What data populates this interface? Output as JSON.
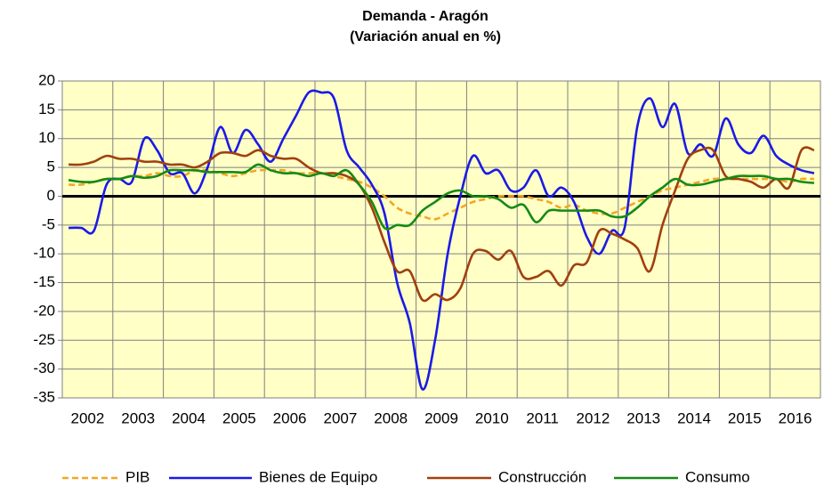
{
  "chart_data": {
    "type": "line",
    "title": "Demanda - Aragón",
    "subtitle": "(Variación anual en %)",
    "categories": [
      null,
      "2002",
      null,
      null,
      null,
      "2003",
      null,
      null,
      null,
      "2004",
      null,
      null,
      null,
      "2005",
      null,
      null,
      null,
      "2006",
      null,
      null,
      null,
      "2007",
      null,
      null,
      null,
      "2008",
      null,
      null,
      null,
      "2009",
      null,
      null,
      null,
      "2010",
      null,
      null,
      null,
      "2011",
      null,
      null,
      null,
      "2012",
      null,
      null,
      null,
      "2013",
      null,
      null,
      null,
      "2014",
      null,
      null,
      null,
      "2015",
      null,
      null,
      null,
      "2016",
      null,
      null
    ],
    "ylim": [
      -35,
      20
    ],
    "yticks": [
      -35,
      -30,
      -25,
      -20,
      -15,
      -10,
      -5,
      0,
      5,
      10,
      15,
      20
    ],
    "grid": true,
    "legend": "bottom",
    "series": [
      {
        "name": "PIB",
        "color": "#f5a623",
        "dashed": true,
        "values": [
          2,
          2,
          2.5,
          3,
          3,
          3.5,
          3.5,
          4,
          3.5,
          3.5,
          4.5,
          4.5,
          4,
          3.5,
          4,
          4.5,
          4.5,
          4.5,
          4,
          4,
          4,
          3.5,
          3,
          2.5,
          1.5,
          0,
          -2,
          -3,
          -3.5,
          -4,
          -3,
          -2,
          -1,
          -0.5,
          0,
          0,
          0,
          -0.5,
          -1,
          -2,
          -1.5,
          -2.5,
          -3,
          -3,
          -2,
          -1,
          0,
          1,
          1.5,
          2,
          2.5,
          3,
          3,
          3,
          3,
          3,
          3,
          2.5,
          3,
          3
        ]
      },
      {
        "name": "Bienes de Equipo",
        "color": "#1a1ae6",
        "values": [
          -5.5,
          -5.5,
          -6,
          2,
          3,
          2.5,
          10,
          8,
          4,
          4,
          0.5,
          5,
          12,
          7.5,
          11.5,
          9,
          6,
          10,
          14,
          18,
          18,
          17,
          8,
          5,
          2,
          -3,
          -15,
          -22,
          -33.5,
          -25,
          -10,
          0,
          7,
          4,
          4.5,
          1,
          1.5,
          4.5,
          0,
          1.5,
          -1,
          -7,
          -10,
          -6,
          -5.5,
          12,
          17,
          12,
          16,
          7.5,
          9,
          7,
          13.5,
          9,
          7.5,
          10.5,
          7,
          5.5,
          4.5,
          4
        ]
      },
      {
        "name": "Construcción",
        "color": "#a0400f",
        "values": [
          5.5,
          5.5,
          6,
          7,
          6.5,
          6.5,
          6,
          6,
          5.5,
          5.5,
          5,
          6,
          7.5,
          7.5,
          7,
          8,
          7,
          6.5,
          6.5,
          5,
          4,
          4,
          3.5,
          2,
          -2,
          -8,
          -13,
          -13,
          -18,
          -17,
          -18,
          -16,
          -10,
          -9.5,
          -11,
          -9.5,
          -14,
          -14,
          -13,
          -15.5,
          -12,
          -11.5,
          -6,
          -6.5,
          -7.5,
          -9,
          -13,
          -5,
          1,
          6.5,
          8,
          8,
          3.5,
          3,
          2.5,
          1.5,
          3,
          1.5,
          8,
          8
        ]
      },
      {
        "name": "Consumo",
        "color": "#158a15",
        "values": [
          2.8,
          2.5,
          2.5,
          3,
          3,
          3.5,
          3.2,
          3.5,
          4.5,
          4.5,
          4.5,
          4.2,
          4.2,
          4.2,
          4.2,
          5.5,
          4.5,
          4,
          4,
          3.5,
          4,
          3.5,
          4.5,
          2,
          -1,
          -5.5,
          -5,
          -5,
          -2.5,
          -1,
          0.5,
          1,
          0,
          0,
          -0.5,
          -2,
          -1.5,
          -4.5,
          -2.5,
          -2.5,
          -2.5,
          -2.5,
          -2.5,
          -3.5,
          -3.5,
          -2,
          0,
          1.5,
          3,
          2,
          2,
          2.5,
          3,
          3.5,
          3.5,
          3.5,
          3,
          3,
          2.5,
          2.3
        ]
      }
    ]
  }
}
